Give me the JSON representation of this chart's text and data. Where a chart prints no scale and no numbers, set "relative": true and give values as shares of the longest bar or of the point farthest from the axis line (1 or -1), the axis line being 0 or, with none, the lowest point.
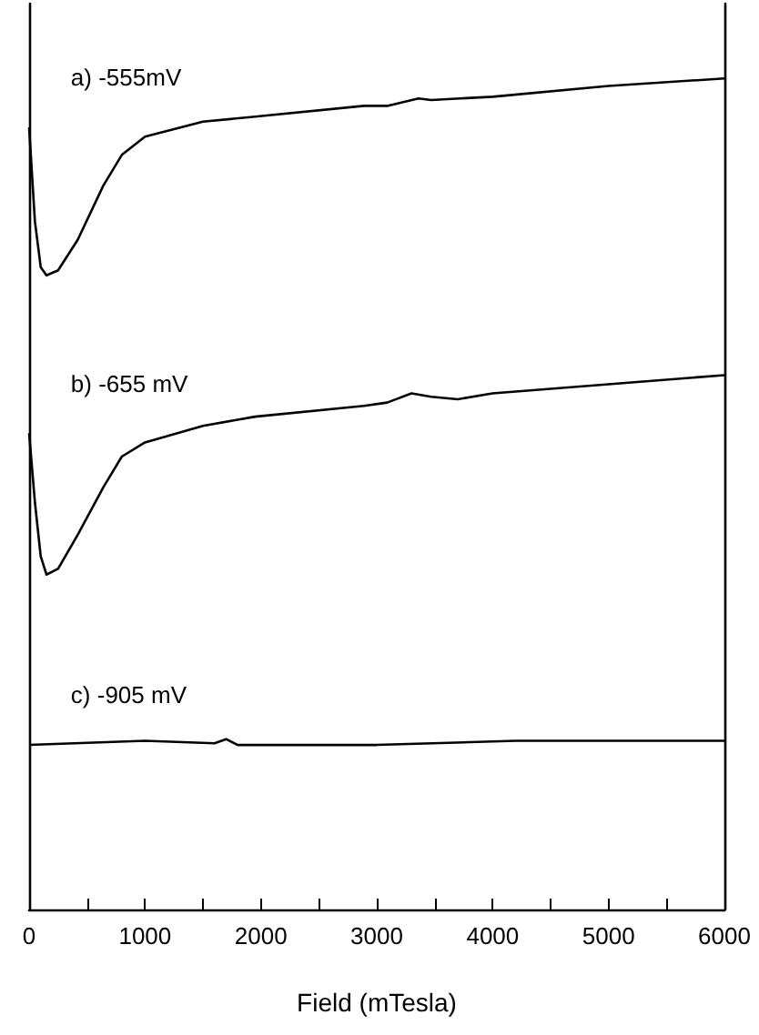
{
  "chart_data": {
    "type": "line",
    "relative": true,
    "xlabel": "Field (mTesla)",
    "xlim": [
      0,
      6000
    ],
    "xticks": [
      0,
      {
        "value": 500,
        "label": null
      },
      1000,
      {
        "value": 1500,
        "label": null
      },
      2000,
      {
        "value": 2500,
        "label": null
      },
      3000,
      {
        "value": 3500,
        "label": null
      },
      4000,
      {
        "value": 4500,
        "label": null
      },
      5000,
      {
        "value": 5500,
        "label": null
      },
      6000
    ],
    "grid": false,
    "legend": false,
    "marker": "none",
    "line_style": "solid",
    "series": [
      {
        "name": "a) -555mV",
        "color": "#000000",
        "x": [
          0,
          50,
          100,
          150,
          250,
          420,
          640,
          800,
          1000,
          1500,
          1950,
          2890,
          3090,
          3360,
          3470,
          4000,
          5000,
          6000
        ],
        "values": [
          0.941,
          0.828,
          0.773,
          0.763,
          0.769,
          0.806,
          0.871,
          0.908,
          0.93,
          0.948,
          0.954,
          0.967,
          0.967,
          0.976,
          0.974,
          0.978,
          0.991,
          1
        ]
      },
      {
        "name": "b) -655 mV",
        "color": "#000000",
        "x": [
          0,
          50,
          100,
          150,
          250,
          420,
          640,
          800,
          1000,
          1500,
          1950,
          2890,
          3090,
          3300,
          3470,
          3700,
          4000,
          5000,
          6000
        ],
        "values": [
          0.573,
          0.49,
          0.425,
          0.403,
          0.41,
          0.451,
          0.508,
          0.545,
          0.562,
          0.582,
          0.593,
          0.606,
          0.61,
          0.621,
          0.617,
          0.614,
          0.621,
          0.632,
          0.643
        ]
      },
      {
        "name": "c) -905 mV",
        "color": "#000000",
        "x": [
          0,
          1000,
          1600,
          1700,
          1800,
          3000,
          4200,
          6000
        ],
        "values": [
          0.198,
          0.203,
          0.2,
          0.205,
          0.198,
          0.198,
          0.203,
          0.203
        ]
      }
    ]
  }
}
